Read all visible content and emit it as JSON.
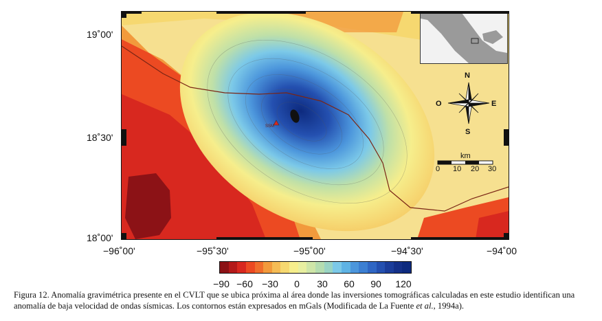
{
  "map": {
    "y_axis_labels": [
      "19˚00'",
      "18˚30'",
      "18˚00'"
    ],
    "x_axis_labels": [
      "−96˚00'",
      "−95˚30'",
      "−95˚00'",
      "−94˚30'",
      "−94˚00"
    ],
    "compass": {
      "north": "N",
      "south": "S",
      "east": "E",
      "west": "O"
    },
    "scale_bar": {
      "unit": "km",
      "ticks": [
        "0",
        "10",
        "20",
        "30"
      ]
    },
    "volcano_label": "SSM",
    "colors": {
      "deep_blue": "#0d2a7e",
      "mid_blue": "#3c7fd2",
      "cyan": "#7cc9e8",
      "green": "#bfe0a8",
      "yellow": "#f6ee8c",
      "orange": "#f29a3c",
      "red": "#d8281f",
      "dark_red": "#8c1216"
    }
  },
  "colorbar": {
    "labels": [
      "−90",
      "−60",
      "−30",
      "0",
      "30",
      "60",
      "90",
      "120"
    ],
    "colors": [
      "#8c1216",
      "#b41a1a",
      "#d8281f",
      "#ec4a22",
      "#f06e2c",
      "#f29a3c",
      "#f5bc55",
      "#f6d870",
      "#f6ee8c",
      "#e8efa0",
      "#cfe6a8",
      "#b5ddb0",
      "#9ad4c4",
      "#7cc9e8",
      "#5fb3e4",
      "#4c96dc",
      "#3c7fd2",
      "#2f66c4",
      "#2450b0",
      "#1b3d9a",
      "#143088",
      "#0d2a7e"
    ]
  },
  "caption": {
    "prefix": "Figura 12. Anomalía gravimétrica presente en el CVLT que se ubica próxima al área donde las inversiones tomográficas calculadas en este estudio identifican una anomalía de baja velocidad de ondas sísmicas. Los contornos están expresados en mGals (Modificada de La Fuente ",
    "etal": "et al.",
    "suffix": ", 1994a)."
  }
}
